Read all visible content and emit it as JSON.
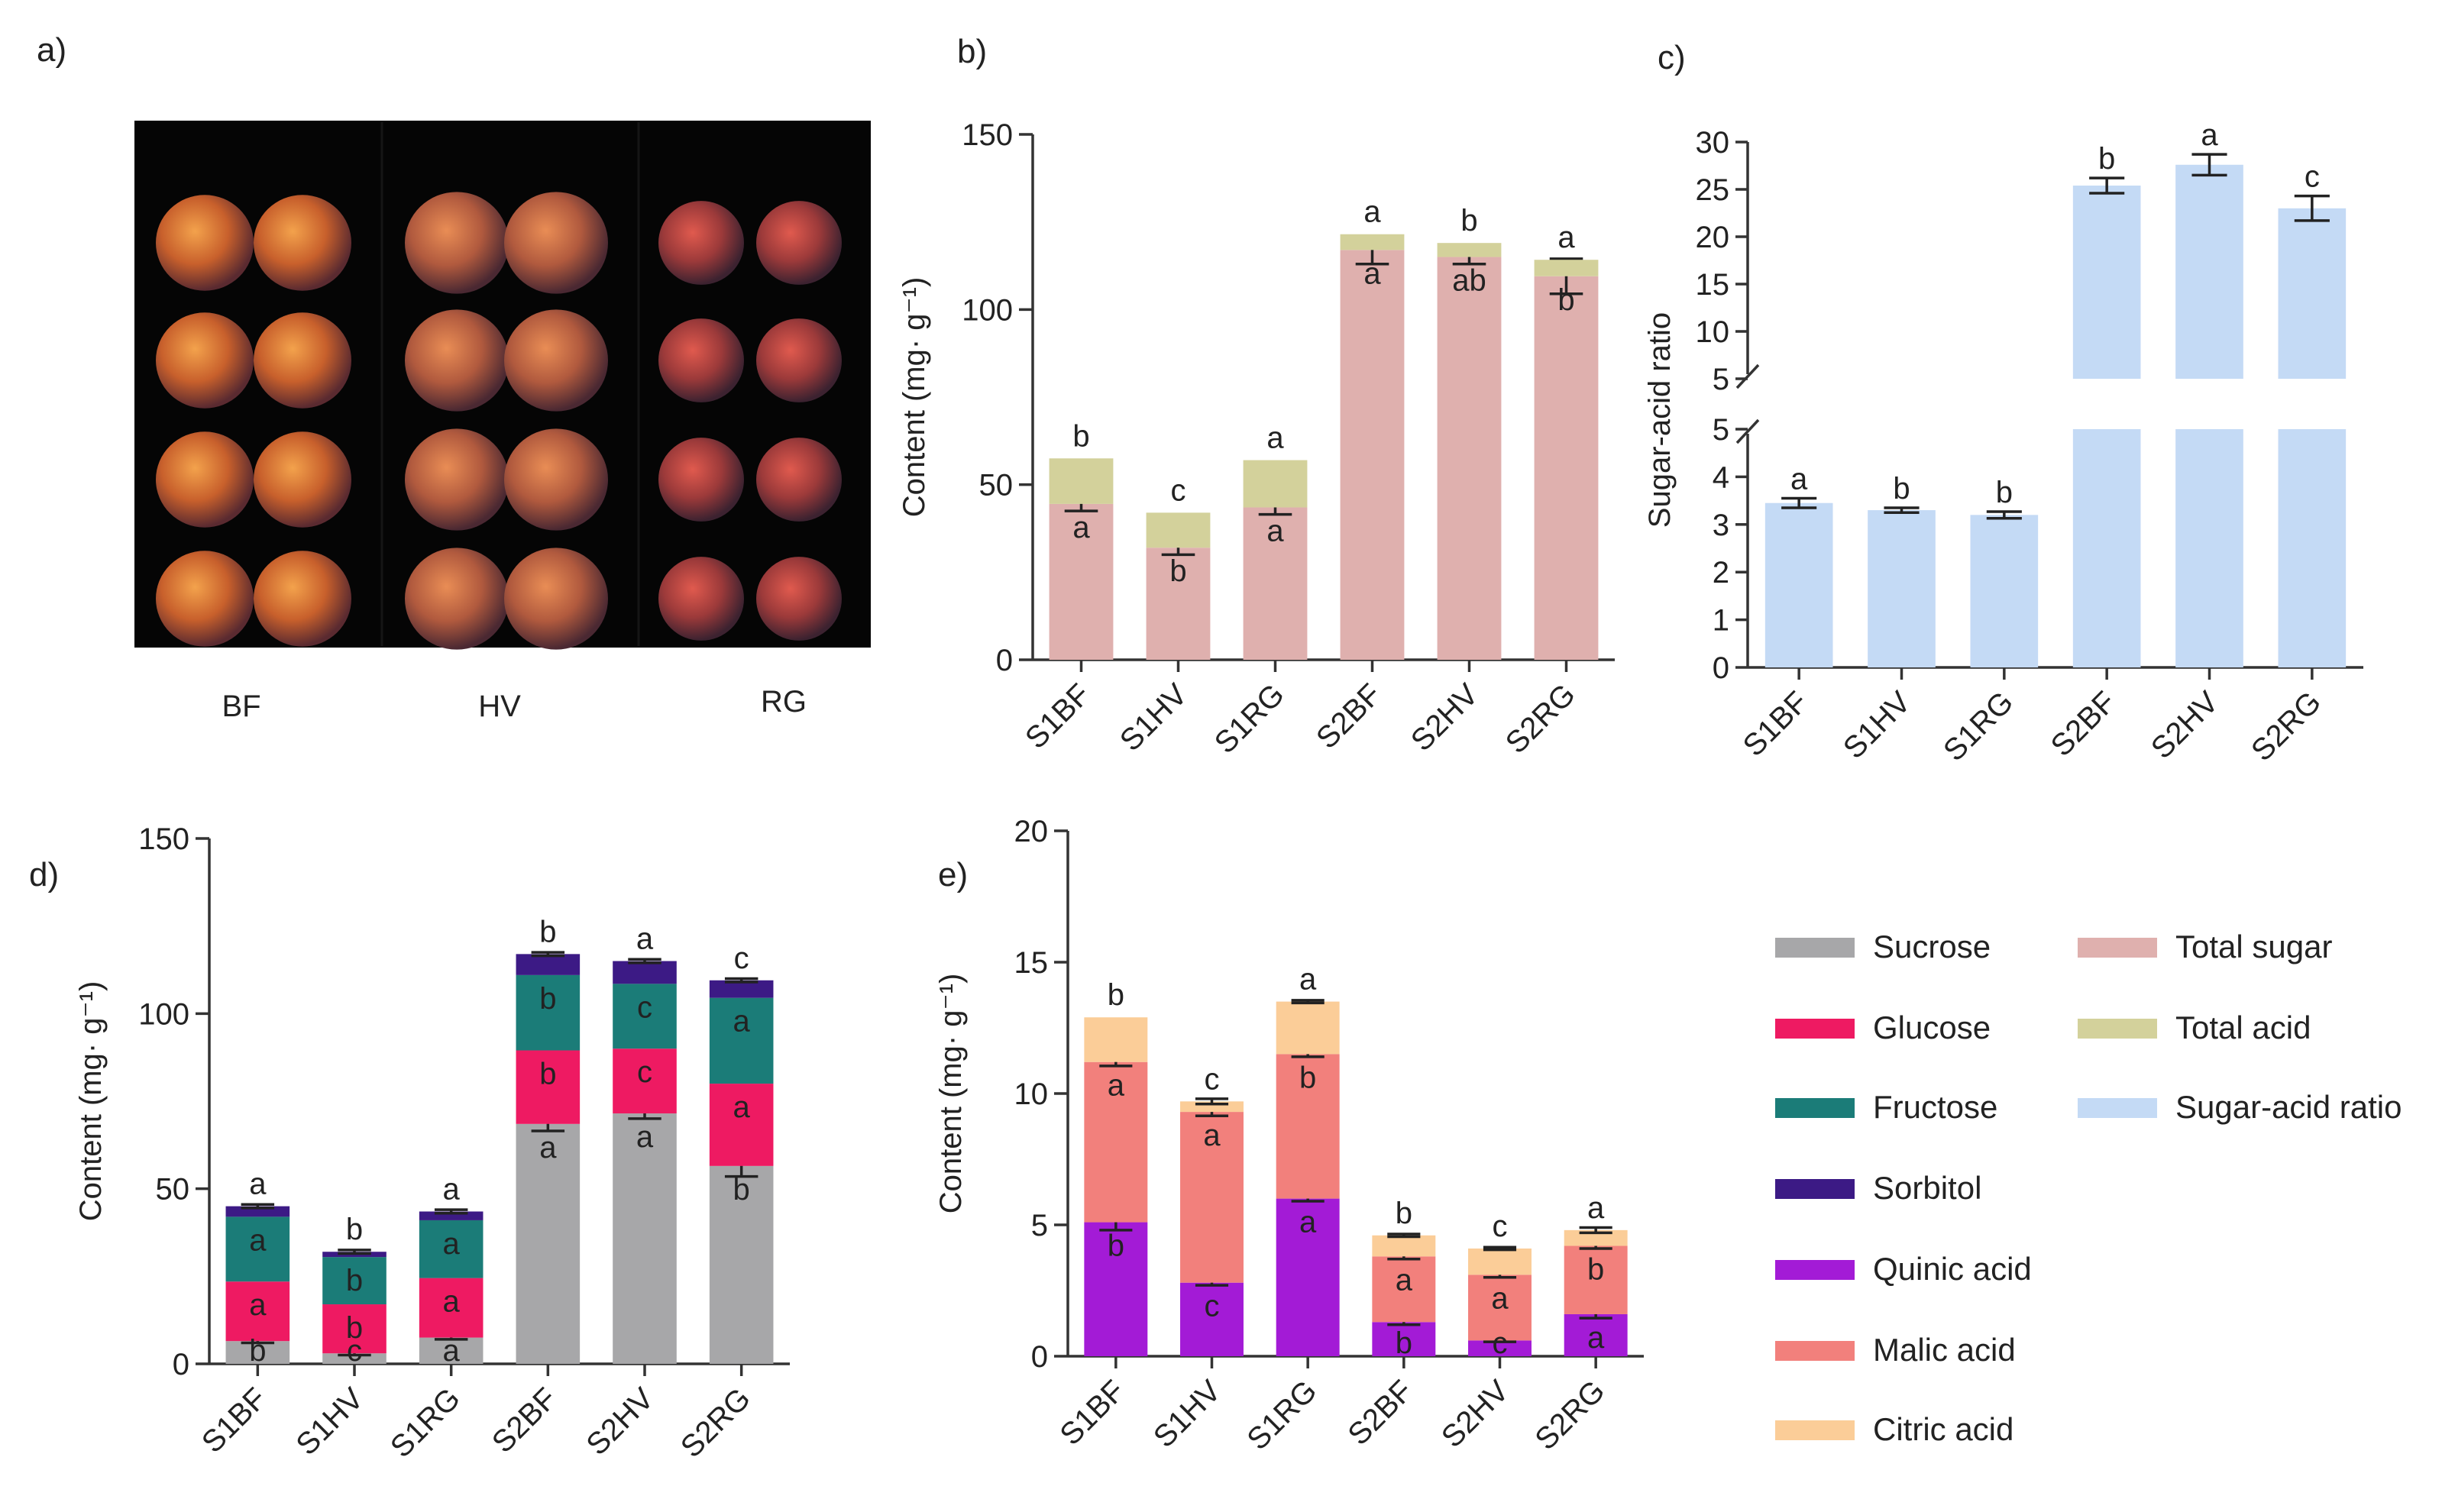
{
  "panel_labels": {
    "a": "a)",
    "b": "b)",
    "c": "c)",
    "d": "d)",
    "e": "e)"
  },
  "photo": {
    "labels": [
      "BF",
      "HV",
      "RG"
    ]
  },
  "categories": [
    "S1BF",
    "S1HV",
    "S1RG",
    "S2BF",
    "S2HV",
    "S2RG"
  ],
  "colors": {
    "Sucrose": "#a7a7a9",
    "Glucose": "#ee1a62",
    "Fructose": "#1b7c78",
    "Sorbitol": "#3c1a85",
    "Quinic acid": "#a31bd6",
    "Malic acid": "#f2807c",
    "Citric acid": "#fbcd98",
    "Total sugar": "#dfb0ae",
    "Total acid": "#d3d19b",
    "Sugar-acid ratio": "#c4daf5"
  },
  "legend": {
    "left": [
      "Sucrose",
      "Glucose",
      "Fructose",
      "Sorbitol",
      "Quinic acid",
      "Malic acid",
      "Citric acid"
    ],
    "right": [
      "Total sugar",
      "Total acid",
      "Sugar-acid ratio"
    ]
  },
  "chart_data": [
    {
      "panel": "b",
      "type": "bar",
      "stacked": true,
      "ylabel": "Content (mg· g⁻¹)",
      "ylim": [
        0,
        150
      ],
      "yticks": [
        0,
        50,
        100,
        150
      ],
      "categories": [
        "S1BF",
        "S1HV",
        "S1RG",
        "S2BF",
        "S2HV",
        "S2RG"
      ],
      "series": [
        {
          "name": "Total sugar",
          "values": [
            44.5,
            32.0,
            43.5,
            117.0,
            115.0,
            109.5
          ],
          "errors": [
            2,
            2,
            2,
            4,
            2,
            5
          ],
          "letters": [
            "a",
            "b",
            "a",
            "a",
            "ab",
            "b"
          ]
        },
        {
          "name": "Total acid",
          "values": [
            13.0,
            10.0,
            13.5,
            4.5,
            4.0,
            4.7
          ],
          "errors": [
            0,
            0,
            0,
            0,
            0,
            0
          ],
          "letters": [
            "b",
            "c",
            "a",
            "a",
            "b",
            "a"
          ]
        }
      ]
    },
    {
      "panel": "c",
      "type": "bar",
      "ylabel": "Sugar-acid ratio",
      "broken_axis": true,
      "ylim_lower": [
        0,
        5
      ],
      "ylim_upper": [
        5,
        30
      ],
      "yticks_lower": [
        "0",
        "1",
        "2",
        "3",
        "4",
        "5"
      ],
      "yticks_upper": [
        "5",
        "10",
        "15",
        "20",
        "25",
        "30"
      ],
      "categories": [
        "S1BF",
        "S1HV",
        "S1RG",
        "S2BF",
        "S2HV",
        "S2RG"
      ],
      "series": [
        {
          "name": "Sugar-acid ratio",
          "values": [
            3.45,
            3.3,
            3.2,
            25.4,
            27.6,
            23.0
          ],
          "errors": [
            0.1,
            0.05,
            0.07,
            0.8,
            1.1,
            1.3
          ],
          "letters": [
            "a",
            "b",
            "b",
            "b",
            "a",
            "c"
          ]
        }
      ]
    },
    {
      "panel": "d",
      "type": "bar",
      "stacked": true,
      "ylabel": "Content (mg· g⁻¹)",
      "ylim": [
        0,
        150
      ],
      "yticks": [
        0,
        50,
        100,
        150
      ],
      "categories": [
        "S1BF",
        "S1HV",
        "S1RG",
        "S2BF",
        "S2HV",
        "S2RG"
      ],
      "series": [
        {
          "name": "Sucrose",
          "values": [
            6.5,
            3.0,
            7.5,
            68.5,
            71.5,
            56.5
          ],
          "errors": [
            0.5,
            0.5,
            0.5,
            2,
            1.5,
            3
          ],
          "letters": [
            "b",
            "c",
            "a",
            "a",
            "a",
            "b"
          ]
        },
        {
          "name": "Glucose",
          "values": [
            17.0,
            14.0,
            17.0,
            21.0,
            18.5,
            23.5
          ],
          "errors": [
            0,
            0,
            0,
            0,
            0,
            0
          ],
          "letters": [
            "a",
            "b",
            "a",
            "b",
            "c",
            "a"
          ]
        },
        {
          "name": "Fructose",
          "values": [
            18.5,
            13.5,
            16.5,
            21.5,
            18.5,
            24.5
          ],
          "errors": [
            0,
            0,
            0,
            0,
            0,
            0
          ],
          "letters": [
            "a",
            "b",
            "a",
            "b",
            "c",
            "a"
          ]
        },
        {
          "name": "Sorbitol",
          "values": [
            3.0,
            1.5,
            2.5,
            6.0,
            6.5,
            5.0
          ],
          "errors": [
            0.5,
            0.5,
            0.5,
            0.5,
            0.5,
            0.5
          ],
          "letters": [
            "a",
            "b",
            "a",
            "b",
            "a",
            "c"
          ]
        }
      ]
    },
    {
      "panel": "e",
      "type": "bar",
      "stacked": true,
      "ylabel": "Content (mg· g⁻¹)",
      "ylim": [
        0,
        20
      ],
      "yticks": [
        0,
        5,
        10,
        15,
        20
      ],
      "categories": [
        "S1BF",
        "S1HV",
        "S1RG",
        "S2BF",
        "S2HV",
        "S2RG"
      ],
      "series": [
        {
          "name": "Quinic acid",
          "values": [
            5.1,
            2.8,
            6.0,
            1.3,
            0.6,
            1.6
          ],
          "errors": [
            0.3,
            0.1,
            0.1,
            0.1,
            0.05,
            0.15
          ],
          "letters": [
            "b",
            "c",
            "a",
            "b",
            "c",
            "a"
          ]
        },
        {
          "name": "Malic acid",
          "values": [
            6.1,
            6.5,
            5.5,
            2.5,
            2.5,
            2.6
          ],
          "errors": [
            0.15,
            0.15,
            0.1,
            0.1,
            0.1,
            0.1
          ],
          "letters": [
            "a",
            "a",
            "b",
            "a",
            "a",
            "b"
          ]
        },
        {
          "name": "Citric acid",
          "values": [
            1.7,
            0.4,
            2.0,
            0.8,
            1.0,
            0.6
          ],
          "errors": [
            0,
            0.1,
            0.05,
            0.05,
            0.05,
            0.1
          ],
          "letters": [
            "b",
            "c",
            "a",
            "b",
            "c",
            "a"
          ]
        }
      ]
    }
  ]
}
